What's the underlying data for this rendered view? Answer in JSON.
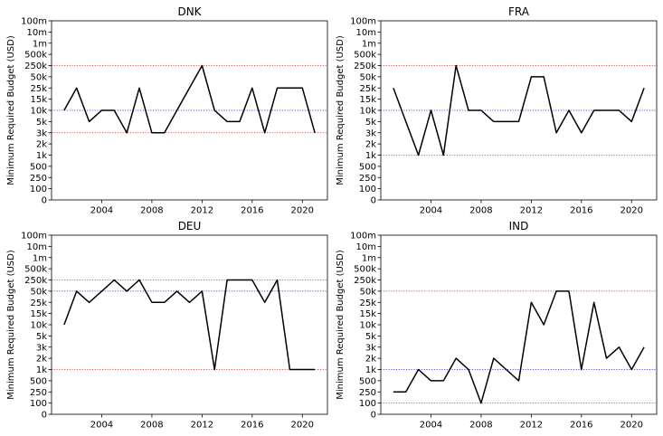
{
  "chart_data": [
    {
      "type": "line",
      "title": "DNK",
      "xlabel": "",
      "ylabel": "Minimum Required Budget (USD)",
      "y_scale": "categorical budget levels",
      "y_ticks": [
        "0",
        "100",
        "250",
        "500",
        "1k",
        "2k",
        "3k",
        "5k",
        "10k",
        "15k",
        "25k",
        "50k",
        "250k",
        "500k",
        "1m",
        "10m",
        "100m"
      ],
      "x_ticks": [
        "2004",
        "2008",
        "2012",
        "2016",
        "2020"
      ],
      "xlim": [
        2000,
        2022
      ],
      "grid": false,
      "series": [
        {
          "color": "#000000",
          "x": [
            2001,
            2002,
            2003,
            2004,
            2005,
            2006,
            2007,
            2008,
            2009,
            2010,
            2011,
            2012,
            2013,
            2014,
            2015,
            2016,
            2017,
            2018,
            2019,
            2020,
            2021
          ],
          "y": [
            "10k",
            "25k",
            "5k",
            "10k",
            "10k",
            "3k",
            "25k",
            "3k",
            "3k",
            "10k",
            "25k",
            "250k",
            "10k",
            "5k",
            "5k",
            "25k",
            "3k",
            "25k",
            "25k",
            "25k",
            "3k"
          ]
        }
      ],
      "reference_lines": [
        {
          "y": "250k",
          "color": "#d62728",
          "style": "dotted"
        },
        {
          "y": "10k",
          "color": "#1f1fd6",
          "style": "dotted"
        },
        {
          "y": "3k",
          "color": "#d62728",
          "style": "dotted"
        }
      ]
    },
    {
      "type": "line",
      "title": "FRA",
      "xlabel": "",
      "ylabel": "Minimum Required Budget (USD)",
      "y_scale": "categorical budget levels",
      "y_ticks": [
        "0",
        "100",
        "250",
        "500",
        "1k",
        "2k",
        "3k",
        "5k",
        "10k",
        "15k",
        "25k",
        "50k",
        "250k",
        "500k",
        "1m",
        "10m",
        "100m"
      ],
      "x_ticks": [
        "2004",
        "2008",
        "2012",
        "2016",
        "2020"
      ],
      "xlim": [
        2000,
        2022
      ],
      "grid": false,
      "series": [
        {
          "color": "#000000",
          "x": [
            2001,
            2002,
            2003,
            2004,
            2005,
            2006,
            2007,
            2008,
            2009,
            2010,
            2011,
            2012,
            2013,
            2014,
            2015,
            2016,
            2017,
            2018,
            2019,
            2020,
            2021
          ],
          "y": [
            "25k",
            "5k",
            "1k",
            "10k",
            "1k",
            "250k",
            "10k",
            "10k",
            "5k",
            "5k",
            "5k",
            "50k",
            "50k",
            "3k",
            "10k",
            "3k",
            "10k",
            "10k",
            "10k",
            "5k",
            "25k"
          ]
        }
      ],
      "reference_lines": [
        {
          "y": "250k",
          "color": "#d62728",
          "style": "dotted"
        },
        {
          "y": "10k",
          "color": "#1f1fd6",
          "style": "dotted"
        },
        {
          "y": "1k",
          "color": "#d62728",
          "style": "dotted"
        }
      ]
    },
    {
      "type": "line",
      "title": "DEU",
      "xlabel": "",
      "ylabel": "Minimum Required Budget (USD)",
      "y_scale": "categorical budget levels",
      "y_ticks": [
        "0",
        "100",
        "250",
        "500",
        "1k",
        "2k",
        "3k",
        "5k",
        "10k",
        "15k",
        "25k",
        "50k",
        "250k",
        "500k",
        "1m",
        "10m",
        "100m"
      ],
      "x_ticks": [
        "2004",
        "2008",
        "2012",
        "2016",
        "2020"
      ],
      "xlim": [
        2000,
        2022
      ],
      "grid": false,
      "series": [
        {
          "color": "#000000",
          "x": [
            2001,
            2002,
            2003,
            2004,
            2005,
            2006,
            2007,
            2008,
            2009,
            2010,
            2011,
            2012,
            2013,
            2014,
            2015,
            2016,
            2017,
            2018,
            2019,
            2020,
            2021
          ],
          "y": [
            "10k",
            "50k",
            "25k",
            "50k",
            "250k",
            "50k",
            "250k",
            "25k",
            "25k",
            "50k",
            "25k",
            "50k",
            "1k",
            "250k",
            "250k",
            "250k",
            "25k",
            "250k",
            "1k",
            "1k",
            "1k"
          ]
        }
      ],
      "reference_lines": [
        {
          "y": "250k",
          "color": "#d62728",
          "style": "dotted"
        },
        {
          "y": "50k",
          "color": "#1f1fd6",
          "style": "dotted"
        },
        {
          "y": "1k",
          "color": "#d62728",
          "style": "dotted"
        }
      ]
    },
    {
      "type": "line",
      "title": "IND",
      "xlabel": "",
      "ylabel": "Minimum Required Budget (USD)",
      "y_scale": "categorical budget levels",
      "y_ticks": [
        "0",
        "100",
        "250",
        "500",
        "1k",
        "2k",
        "3k",
        "5k",
        "10k",
        "15k",
        "25k",
        "50k",
        "250k",
        "500k",
        "1m",
        "10m",
        "100m"
      ],
      "x_ticks": [
        "2004",
        "2008",
        "2012",
        "2016",
        "2020"
      ],
      "xlim": [
        2000,
        2022
      ],
      "grid": false,
      "series": [
        {
          "color": "#000000",
          "x": [
            2001,
            2002,
            2003,
            2004,
            2005,
            2006,
            2007,
            2008,
            2009,
            2010,
            2011,
            2012,
            2013,
            2014,
            2015,
            2016,
            2017,
            2018,
            2019,
            2020,
            2021
          ],
          "y": [
            "250",
            "250",
            "1k",
            "500",
            "500",
            "2k",
            "1k",
            "100",
            "2k",
            "1k",
            "500",
            "25k",
            "10k",
            "50k",
            "50k",
            "1k",
            "25k",
            "2k",
            "3k",
            "1k",
            "3k"
          ]
        }
      ],
      "reference_lines": [
        {
          "y": "50k",
          "color": "#d62728",
          "style": "dotted"
        },
        {
          "y": "1k",
          "color": "#1f1fd6",
          "style": "dotted"
        },
        {
          "y": "100",
          "color": "#d62728",
          "style": "dotted"
        }
      ]
    }
  ]
}
